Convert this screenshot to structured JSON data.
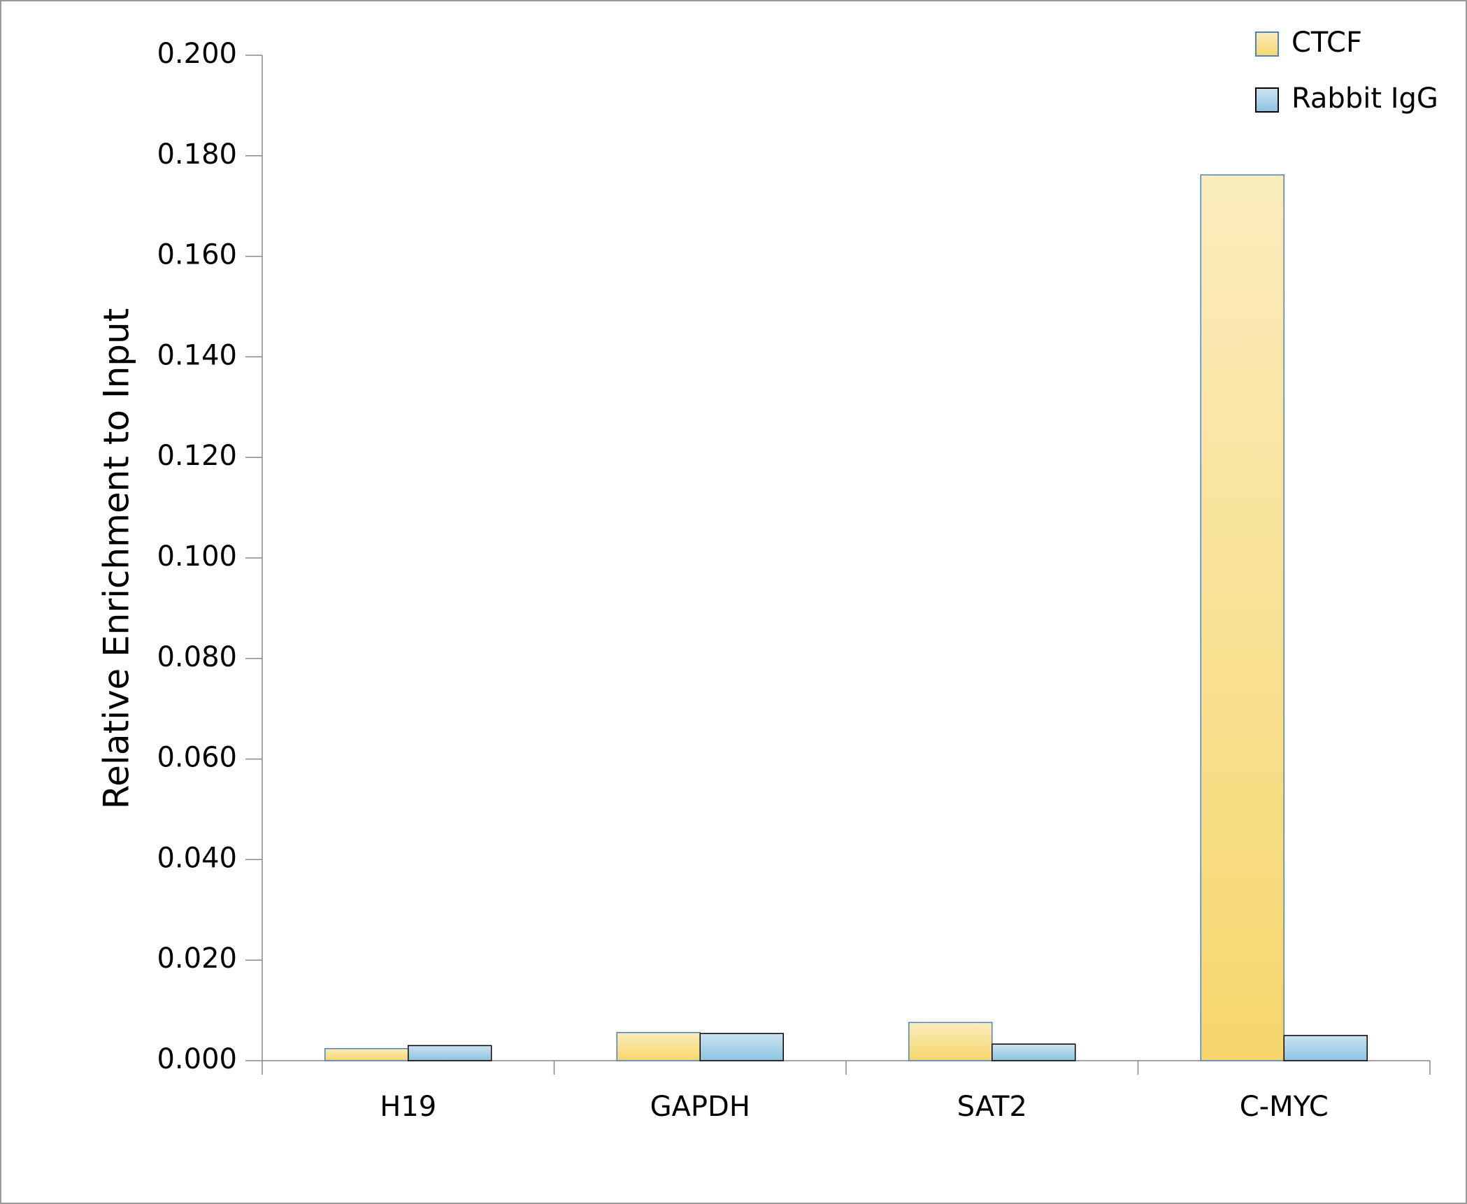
{
  "chart_data": {
    "type": "bar",
    "y_label": "Relative Enrichment to Input",
    "categories": [
      "H19",
      "GAPDH",
      "SAT2",
      "C-MYC"
    ],
    "series": [
      {
        "name": "CTCF",
        "color": "#f6d66c",
        "values": [
          0.0024,
          0.0056,
          0.0076,
          0.1762
        ]
      },
      {
        "name": "Rabbit IgG",
        "color": "#8cc3e0",
        "values": [
          0.003,
          0.0054,
          0.0033,
          0.005
        ]
      }
    ],
    "ylim": [
      0,
      0.2
    ],
    "yticks": [
      {
        "value": 0,
        "label": "0.000"
      },
      {
        "value": 0.02,
        "label": "0.020"
      },
      {
        "value": 0.04,
        "label": "0.040"
      },
      {
        "value": 0.06,
        "label": "0.060"
      },
      {
        "value": 0.08,
        "label": "0.080"
      },
      {
        "value": 0.1,
        "label": "0.100"
      },
      {
        "value": 0.12,
        "label": "0.120"
      },
      {
        "value": 0.14,
        "label": "0.140"
      },
      {
        "value": 0.16,
        "label": "0.160"
      },
      {
        "value": 0.18,
        "label": "0.180"
      },
      {
        "value": 0.2,
        "label": "0.200"
      }
    ],
    "legend": "top-right"
  }
}
